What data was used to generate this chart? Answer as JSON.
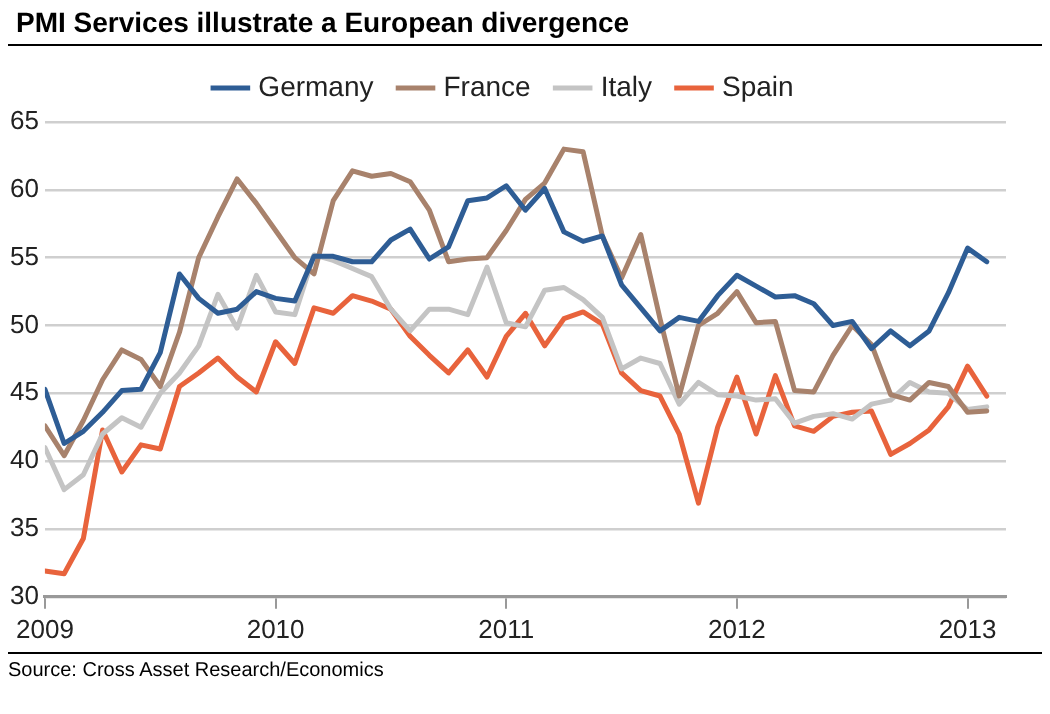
{
  "chart_data": {
    "type": "line",
    "title": "PMI Services illustrate a European divergence",
    "x": [
      "2009-01",
      "2009-02",
      "2009-03",
      "2009-04",
      "2009-05",
      "2009-06",
      "2009-07",
      "2009-08",
      "2009-09",
      "2009-10",
      "2009-11",
      "2009-12",
      "2010-01",
      "2010-02",
      "2010-03",
      "2010-04",
      "2010-05",
      "2010-06",
      "2010-07",
      "2010-08",
      "2010-09",
      "2010-10",
      "2010-11",
      "2010-12",
      "2011-01",
      "2011-02",
      "2011-03",
      "2011-04",
      "2011-05",
      "2011-06",
      "2011-07",
      "2011-08",
      "2011-09",
      "2011-10",
      "2011-11",
      "2011-12",
      "2012-01",
      "2012-02",
      "2012-03",
      "2012-04",
      "2012-05",
      "2012-06",
      "2012-07",
      "2012-08",
      "2012-09",
      "2012-10",
      "2012-11",
      "2012-12",
      "2013-01",
      "2013-02"
    ],
    "series": [
      {
        "name": "Germany",
        "color": "#2e5d95",
        "values": [
          45.3,
          41.3,
          42.2,
          43.6,
          45.2,
          45.3,
          48,
          53.8,
          52,
          50.9,
          51.2,
          52.5,
          52,
          51.8,
          55.1,
          55.1,
          54.7,
          54.7,
          56.3,
          57.1,
          54.9,
          55.8,
          59.2,
          59.4,
          60.3,
          58.5,
          60.1,
          56.9,
          56.2,
          56.6,
          53,
          51.3,
          49.6,
          50.6,
          50.3,
          52.2,
          53.7,
          52.9,
          52.1,
          52.2,
          51.6,
          50,
          50.3,
          48.3,
          49.6,
          48.5,
          49.6,
          52.4,
          55.7,
          54.7
        ]
      },
      {
        "name": "France",
        "color": "#a8826c",
        "values": [
          42.6,
          40.4,
          43,
          46,
          48.2,
          47.5,
          45.5,
          49.5,
          55,
          58,
          60.8,
          59,
          57,
          55,
          53.8,
          59.2,
          61.4,
          61,
          61.2,
          60.6,
          58.5,
          54.7,
          54.9,
          55,
          57,
          59.3,
          60.5,
          63,
          62.8,
          56.6,
          53.5,
          56.7,
          50.5,
          44.8,
          50,
          50.9,
          52.5,
          50.2,
          50.3,
          45.2,
          45.1,
          47.8,
          50,
          48.6,
          44.9,
          44.5,
          45.8,
          45.5,
          43.6,
          43.7
        ]
      },
      {
        "name": "Italy",
        "color": "#c4c4c4",
        "values": [
          41,
          37.9,
          39,
          42,
          43.2,
          42.5,
          45,
          46.5,
          48.5,
          52.3,
          49.8,
          53.7,
          51,
          50.8,
          55.2,
          54.8,
          54.2,
          53.6,
          51.2,
          49.6,
          51.2,
          51.2,
          50.8,
          54.3,
          50.2,
          49.9,
          52.6,
          52.8,
          51.9,
          50.6,
          46.8,
          47.6,
          47.2,
          44.2,
          45.8,
          44.9,
          44.8,
          44.5,
          44.6,
          42.8,
          43.3,
          43.5,
          43.1,
          44.2,
          44.5,
          45.8,
          45.1,
          45,
          43.8,
          44
        ]
      },
      {
        "name": "Spain",
        "color": "#e8633c",
        "values": [
          31.9,
          31.7,
          34.3,
          42.3,
          39.2,
          41.2,
          40.9,
          45.5,
          46.5,
          47.6,
          46.2,
          45.1,
          48.8,
          47.2,
          51.3,
          50.9,
          52.2,
          51.8,
          51.2,
          49.2,
          47.8,
          46.5,
          48.2,
          46.2,
          49.2,
          50.9,
          48.5,
          50.5,
          51,
          50.1,
          46.5,
          45.2,
          44.8,
          42,
          36.9,
          42.5,
          46.2,
          42,
          46.3,
          42.6,
          42.2,
          43.3,
          43.6,
          43.7,
          40.5,
          41.3,
          42.3,
          44,
          47,
          44.8
        ]
      }
    ],
    "xlim": [
      "2009-01",
      "2013-03"
    ],
    "xticks": [
      "2009",
      "2010",
      "2011",
      "2012",
      "2013"
    ],
    "ylim": [
      30,
      65
    ],
    "yticks": [
      30,
      35,
      40,
      45,
      50,
      55,
      60,
      65
    ],
    "grid": "y",
    "legend": "top",
    "marker": "none",
    "line_style": "solid",
    "annotations": [
      "Source: Cross Asset Research/Economics"
    ]
  }
}
